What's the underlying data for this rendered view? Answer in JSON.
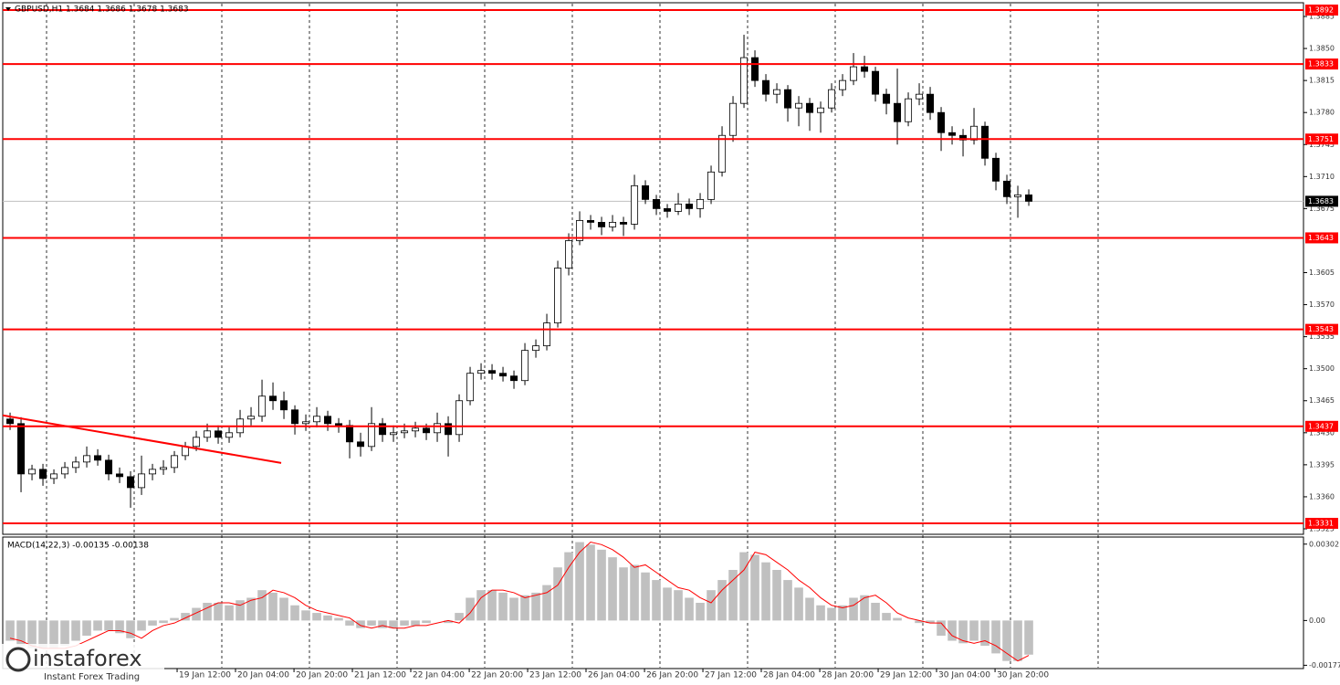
{
  "chart_data": [
    {
      "type": "candlestick",
      "title": "GBPUSD,H1 1.3684 1.3686 1.3678 1.3683",
      "xlim": [
        -0.67,
        118.08
      ],
      "ylim": [
        1.3319,
        1.39
      ],
      "yticks": [
        1.3885,
        {
          "value": 1.385,
          "label": "1.3850"
        },
        1.3815,
        {
          "value": 1.378,
          "label": "1.3780"
        },
        1.3745,
        {
          "value": 1.371,
          "label": "1.3710"
        },
        1.3675,
        1.3605,
        {
          "value": 1.357,
          "label": "1.3570"
        },
        1.3535,
        {
          "value": 1.35,
          "label": "1.3500"
        },
        1.3465,
        {
          "value": 1.343,
          "label": "1.3430"
        },
        1.3395,
        {
          "value": 1.336,
          "label": "1.3360"
        },
        1.3325
      ],
      "xticks": [
        {
          "value": 15.25,
          "label": "19 Jan 12:00"
        },
        {
          "value": 20.58,
          "label": "20 Jan 04:00"
        },
        {
          "value": 25.92,
          "label": "20 Jan 20:00"
        },
        {
          "value": 31.25,
          "label": "21 Jan 12:00"
        },
        {
          "value": 36.58,
          "label": "22 Jan 04:00"
        },
        {
          "value": 41.92,
          "label": "22 Jan 20:00"
        },
        {
          "value": 47.25,
          "label": "23 Jan 12:00"
        },
        {
          "value": 52.58,
          "label": "26 Jan 04:00"
        },
        {
          "value": 57.92,
          "label": "26 Jan 20:00"
        },
        {
          "value": 63.25,
          "label": "27 Jan 12:00"
        },
        {
          "value": 68.58,
          "label": "28 Jan 04:00"
        },
        {
          "value": 73.92,
          "label": "28 Jan 20:00"
        },
        {
          "value": 79.25,
          "label": "29 Jan 12:00"
        },
        {
          "value": 84.58,
          "label": "30 Jan 04:00"
        },
        {
          "value": 89.92,
          "label": "30 Jan 20:00"
        }
      ],
      "vgrid": [
        3.33,
        11.33,
        19.33,
        27.33,
        35.33,
        43.33,
        51.33,
        59.33,
        67.33,
        75.33,
        83.33,
        91.33,
        99.33
      ],
      "levels": {
        "color": "#ff0000",
        "values": [
          1.3892,
          1.3833,
          1.3751,
          1.3643,
          1.3543,
          1.3437,
          1.3331
        ]
      },
      "current_price": 1.3683,
      "trendline": {
        "color": "#ff0000",
        "x": [
          -0.67,
          24.75
        ],
        "y": [
          1.3449,
          1.3397
        ]
      },
      "candles": [
        [
          1.3445,
          1.3452,
          1.3433,
          1.344
        ],
        [
          1.344,
          1.3447,
          1.3365,
          1.3385
        ],
        [
          1.3385,
          1.3395,
          1.3378,
          1.339
        ],
        [
          1.339,
          1.3396,
          1.3372,
          1.338
        ],
        [
          1.338,
          1.339,
          1.3374,
          1.3385
        ],
        [
          1.3385,
          1.3398,
          1.338,
          1.3392
        ],
        [
          1.3392,
          1.3404,
          1.3386,
          1.3398
        ],
        [
          1.3398,
          1.3415,
          1.3392,
          1.3405
        ],
        [
          1.3405,
          1.3412,
          1.3394,
          1.34
        ],
        [
          1.34,
          1.3406,
          1.3378,
          1.3385
        ],
        [
          1.3385,
          1.3392,
          1.3375,
          1.3382
        ],
        [
          1.3382,
          1.3388,
          1.3348,
          1.337
        ],
        [
          1.337,
          1.3405,
          1.3362,
          1.3385
        ],
        [
          1.3385,
          1.3396,
          1.3378,
          1.339
        ],
        [
          1.339,
          1.34,
          1.3384,
          1.3392
        ],
        [
          1.3392,
          1.341,
          1.3386,
          1.3405
        ],
        [
          1.3405,
          1.342,
          1.34,
          1.3415
        ],
        [
          1.3415,
          1.3432,
          1.341,
          1.3425
        ],
        [
          1.3425,
          1.344,
          1.342,
          1.3432
        ],
        [
          1.3432,
          1.3438,
          1.3418,
          1.3425
        ],
        [
          1.3425,
          1.3436,
          1.3419,
          1.343
        ],
        [
          1.343,
          1.3455,
          1.3425,
          1.3445
        ],
        [
          1.3445,
          1.3458,
          1.3438,
          1.3448
        ],
        [
          1.3448,
          1.3488,
          1.3442,
          1.347
        ],
        [
          1.347,
          1.3485,
          1.3455,
          1.3465
        ],
        [
          1.3465,
          1.3475,
          1.3445,
          1.3455
        ],
        [
          1.3455,
          1.346,
          1.3428,
          1.344
        ],
        [
          1.344,
          1.345,
          1.3432,
          1.3442
        ],
        [
          1.3442,
          1.3458,
          1.3436,
          1.3448
        ],
        [
          1.3448,
          1.3454,
          1.3432,
          1.344
        ],
        [
          1.344,
          1.3446,
          1.343,
          1.3438
        ],
        [
          1.3438,
          1.3444,
          1.3402,
          1.342
        ],
        [
          1.342,
          1.343,
          1.3404,
          1.3415
        ],
        [
          1.3415,
          1.3458,
          1.341,
          1.344
        ],
        [
          1.344,
          1.3446,
          1.342,
          1.3428
        ],
        [
          1.3428,
          1.3438,
          1.342,
          1.343
        ],
        [
          1.343,
          1.344,
          1.3424,
          1.3432
        ],
        [
          1.3432,
          1.3442,
          1.3425,
          1.3435
        ],
        [
          1.3435,
          1.344,
          1.3422,
          1.343
        ],
        [
          1.343,
          1.3452,
          1.342,
          1.344
        ],
        [
          1.344,
          1.3448,
          1.3404,
          1.3428
        ],
        [
          1.3428,
          1.3472,
          1.342,
          1.3465
        ],
        [
          1.3465,
          1.3502,
          1.346,
          1.3495
        ],
        [
          1.3495,
          1.3506,
          1.3488,
          1.3498
        ],
        [
          1.3498,
          1.3505,
          1.3488,
          1.3495
        ],
        [
          1.3495,
          1.3502,
          1.3486,
          1.3492
        ],
        [
          1.3492,
          1.3498,
          1.3478,
          1.3487
        ],
        [
          1.3487,
          1.3528,
          1.3482,
          1.352
        ],
        [
          1.352,
          1.3532,
          1.3512,
          1.3525
        ],
        [
          1.3525,
          1.356,
          1.352,
          1.355
        ],
        [
          1.355,
          1.3618,
          1.3545,
          1.361
        ],
        [
          1.361,
          1.3648,
          1.3602,
          1.364
        ],
        [
          1.364,
          1.3672,
          1.3635,
          1.3662
        ],
        [
          1.3662,
          1.3668,
          1.3652,
          1.366
        ],
        [
          1.366,
          1.3666,
          1.3646,
          1.3655
        ],
        [
          1.3655,
          1.3668,
          1.365,
          1.366
        ],
        [
          1.366,
          1.3666,
          1.3645,
          1.3658
        ],
        [
          1.3658,
          1.3712,
          1.3652,
          1.37
        ],
        [
          1.37,
          1.3706,
          1.368,
          1.3685
        ],
        [
          1.3685,
          1.369,
          1.3668,
          1.3675
        ],
        [
          1.3675,
          1.368,
          1.3665,
          1.3672
        ],
        [
          1.3672,
          1.3692,
          1.3668,
          1.368
        ],
        [
          1.368,
          1.3686,
          1.3668,
          1.3675
        ],
        [
          1.3675,
          1.3692,
          1.3665,
          1.3685
        ],
        [
          1.3685,
          1.3722,
          1.368,
          1.3715
        ],
        [
          1.3715,
          1.3765,
          1.371,
          1.3755
        ],
        [
          1.3755,
          1.3798,
          1.3748,
          1.379
        ],
        [
          1.379,
          1.3865,
          1.3785,
          1.384
        ],
        [
          1.384,
          1.3848,
          1.3808,
          1.3815
        ],
        [
          1.3815,
          1.3822,
          1.3792,
          1.38
        ],
        [
          1.38,
          1.3812,
          1.379,
          1.3805
        ],
        [
          1.3805,
          1.381,
          1.377,
          1.3785
        ],
        [
          1.3785,
          1.3798,
          1.3765,
          1.379
        ],
        [
          1.379,
          1.3796,
          1.376,
          1.378
        ],
        [
          1.378,
          1.3792,
          1.3758,
          1.3785
        ],
        [
          1.3785,
          1.3812,
          1.378,
          1.3805
        ],
        [
          1.3805,
          1.3822,
          1.3798,
          1.3815
        ],
        [
          1.3815,
          1.3845,
          1.381,
          1.383
        ],
        [
          1.383,
          1.3842,
          1.3818,
          1.3825
        ],
        [
          1.3825,
          1.383,
          1.3792,
          1.38
        ],
        [
          1.38,
          1.3806,
          1.3778,
          1.379
        ],
        [
          1.379,
          1.3828,
          1.3745,
          1.377
        ],
        [
          1.377,
          1.3802,
          1.3765,
          1.3795
        ],
        [
          1.3795,
          1.3812,
          1.3788,
          1.38
        ],
        [
          1.38,
          1.3808,
          1.3772,
          1.378
        ],
        [
          1.378,
          1.3786,
          1.3738,
          1.3758
        ],
        [
          1.3758,
          1.3765,
          1.3745,
          1.3755
        ],
        [
          1.3755,
          1.3762,
          1.3732,
          1.375
        ],
        [
          1.375,
          1.3785,
          1.3745,
          1.3765
        ],
        [
          1.3765,
          1.377,
          1.3722,
          1.373
        ],
        [
          1.373,
          1.3736,
          1.3695,
          1.3705
        ],
        [
          1.3705,
          1.3712,
          1.368,
          1.3688
        ],
        [
          1.3688,
          1.37,
          1.3665,
          1.369
        ],
        [
          1.369,
          1.3696,
          1.3678,
          1.3683
        ]
      ]
    },
    {
      "type": "macd",
      "title": "MACD(14,22,3) -0.00135 -0.00138",
      "ylim": [
        -0.0019,
        0.0033
      ],
      "yticks": [
        0.00302,
        {
          "value": 0,
          "label": "0.00"
        },
        -0.00177
      ],
      "series": [
        {
          "color": "#c0c0c0",
          "values": [
            -0.0008,
            -0.001,
            -0.0011,
            -0.0011,
            -0.0011,
            -0.001,
            -0.0008,
            -0.0006,
            -0.0004,
            -0.0004,
            -0.0005,
            -0.0007,
            -0.0004,
            -0.0002,
            -0.0001,
            0.0001,
            0.0003,
            0.0005,
            0.0007,
            0.0007,
            0.0006,
            0.0008,
            0.0009,
            0.0012,
            0.0011,
            0.0009,
            0.0006,
            0.0004,
            0.0003,
            0.0002,
            0.0001,
            -0.0002,
            -0.0003,
            -0.0002,
            -0.0003,
            -0.0003,
            -0.0002,
            -0.0002,
            -0.0001,
            0.0,
            -0.0001,
            0.0003,
            0.0009,
            0.0012,
            0.0012,
            0.0011,
            0.0009,
            0.001,
            0.0011,
            0.0014,
            0.0021,
            0.0027,
            0.0031,
            0.003,
            0.0028,
            0.0025,
            0.0021,
            0.0022,
            0.0019,
            0.0016,
            0.0013,
            0.0012,
            0.0009,
            0.0007,
            0.0012,
            0.0016,
            0.002,
            0.0027,
            0.0026,
            0.0023,
            0.002,
            0.0016,
            0.0013,
            0.0009,
            0.0006,
            0.0005,
            0.0006,
            0.0009,
            0.001,
            0.0007,
            0.0003,
            0.0001,
            0.0,
            -0.0001,
            -0.0001,
            -0.0006,
            -0.0008,
            -0.0009,
            -0.0008,
            -0.001,
            -0.0013,
            -0.0016,
            -0.0016,
            -0.00135
          ]
        },
        {
          "color": "#ff0000",
          "values": [
            -0.0007,
            -0.0008,
            -0.001,
            -0.0011,
            -0.0011,
            -0.0011,
            -0.001,
            -0.0008,
            -0.0006,
            -0.0004,
            -0.0004,
            -0.0005,
            -0.0007,
            -0.0004,
            -0.0002,
            -0.0001,
            0.0001,
            0.0003,
            0.0005,
            0.0007,
            0.0007,
            0.0006,
            0.0008,
            0.0009,
            0.0012,
            0.0011,
            0.0009,
            0.0006,
            0.0004,
            0.0003,
            0.0002,
            0.0001,
            -0.0002,
            -0.0003,
            -0.0002,
            -0.0003,
            -0.0003,
            -0.0002,
            -0.0002,
            -0.0001,
            0.0,
            -0.0001,
            0.0003,
            0.0009,
            0.0012,
            0.0012,
            0.0011,
            0.0009,
            0.001,
            0.0011,
            0.0014,
            0.0021,
            0.0027,
            0.0031,
            0.003,
            0.0028,
            0.0025,
            0.0021,
            0.0022,
            0.0019,
            0.0016,
            0.0013,
            0.0012,
            0.0009,
            0.0007,
            0.0012,
            0.0016,
            0.002,
            0.0027,
            0.0026,
            0.0023,
            0.002,
            0.0016,
            0.0013,
            0.0009,
            0.0006,
            0.0005,
            0.0006,
            0.0009,
            0.001,
            0.0007,
            0.0003,
            0.0001,
            0.0,
            -0.0001,
            -0.0001,
            -0.0006,
            -0.0008,
            -0.0009,
            -0.0008,
            -0.001,
            -0.0013,
            -0.0016,
            -0.00138
          ]
        }
      ]
    }
  ],
  "logo": {
    "name": "instaforex",
    "tagline": "Instant Forex Trading"
  }
}
